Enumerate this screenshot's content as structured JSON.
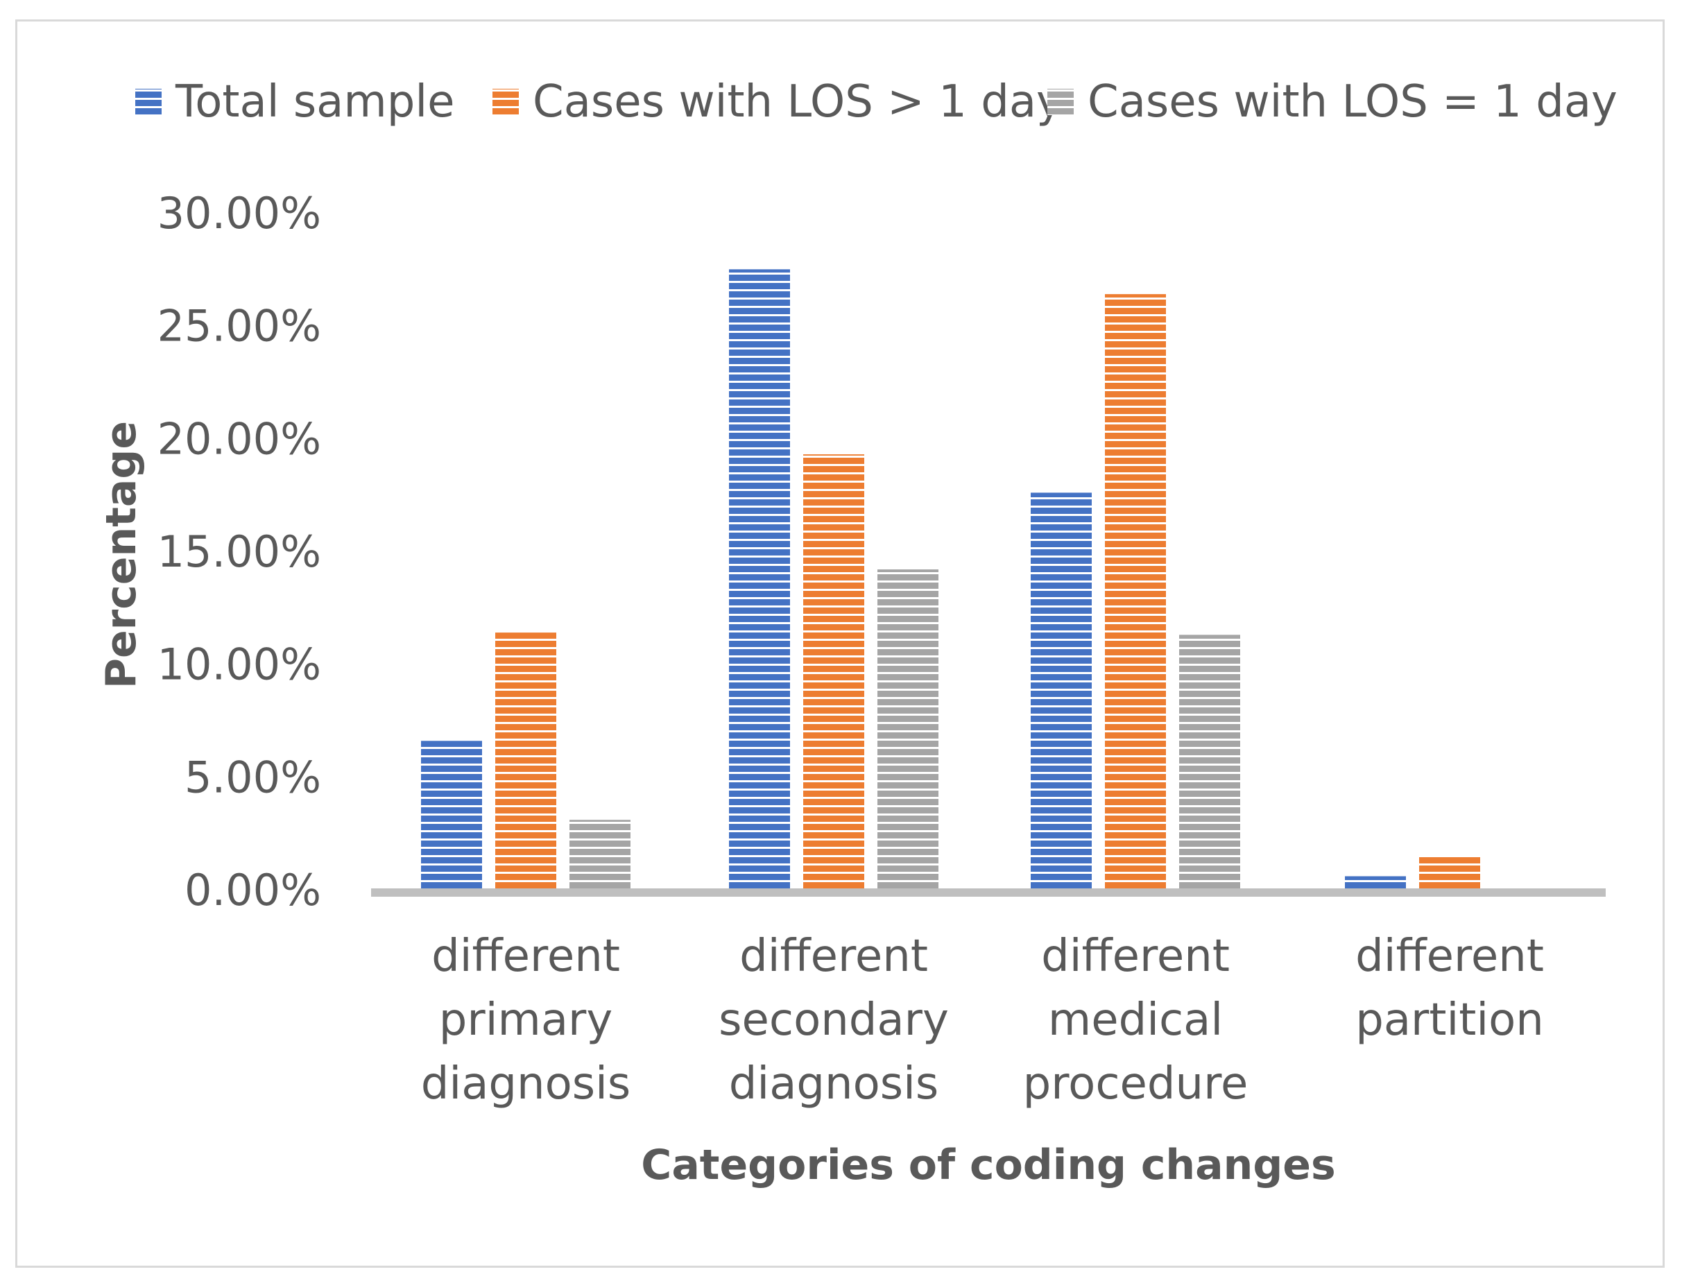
{
  "chart_data": {
    "type": "bar",
    "title": "",
    "xlabel": "Categories of coding changes",
    "ylabel": "Percentage",
    "ylim": [
      0,
      30
    ],
    "yticks": [
      "0.00%",
      "5.00%",
      "10.00%",
      "15.00%",
      "20.00%",
      "25.00%",
      "30.00%"
    ],
    "categories": [
      [
        "different",
        "primary",
        "diagnosis"
      ],
      [
        "different",
        "secondary",
        "diagnosis"
      ],
      [
        "different",
        "medical",
        "procedure"
      ],
      [
        "different",
        "partition"
      ]
    ],
    "series": [
      {
        "name": "Total sample",
        "values": [
          6.6,
          27.5,
          17.6,
          0.6
        ],
        "color": "#4472c4"
      },
      {
        "name": "Cases with LOS > 1 day",
        "values": [
          11.4,
          19.3,
          26.4,
          1.5
        ],
        "color": "#ed7d31"
      },
      {
        "name": "Cases with LOS = 1 day",
        "values": [
          3.1,
          14.2,
          11.3,
          0.0
        ],
        "color": "#a5a5a5"
      }
    ],
    "grid": false,
    "legend": "top"
  }
}
